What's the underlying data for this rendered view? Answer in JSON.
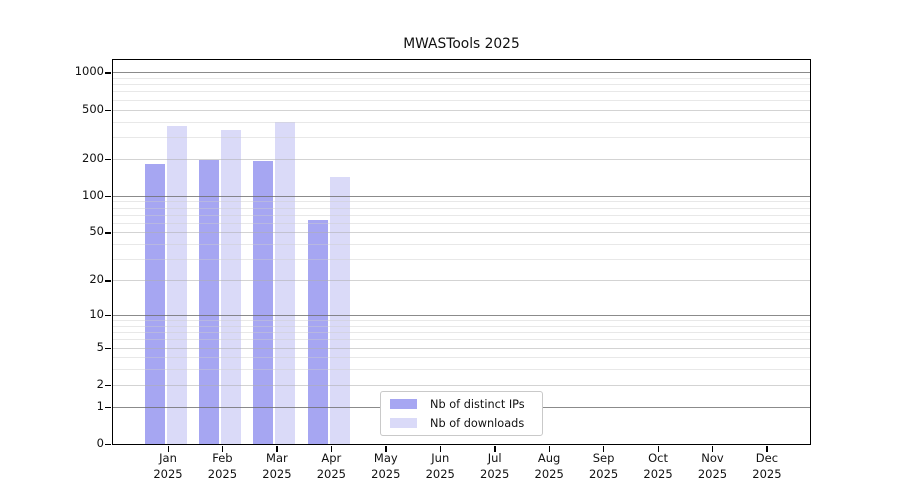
{
  "chart_data": {
    "type": "bar",
    "title": "MWASTools 2025",
    "year_label": "2025",
    "categories": [
      "Jan",
      "Feb",
      "Mar",
      "Apr",
      "May",
      "Jun",
      "Jul",
      "Aug",
      "Sep",
      "Oct",
      "Nov",
      "Dec"
    ],
    "series": [
      {
        "name": "Nb of distinct IPs",
        "color": "#a6a6f2",
        "values": [
          180,
          195,
          192,
          63,
          0,
          0,
          0,
          0,
          0,
          0,
          0,
          0
        ]
      },
      {
        "name": "Nb of downloads",
        "color": "#dadaf8",
        "values": [
          370,
          340,
          400,
          141,
          0,
          0,
          0,
          0,
          0,
          0,
          0,
          0
        ]
      }
    ],
    "yticks": [
      0,
      1,
      2,
      5,
      10,
      20,
      50,
      100,
      200,
      500,
      1000
    ],
    "yscale": "log1p",
    "ylim": [
      0,
      1260
    ],
    "grid": "horizontal, minor and major, drawn over bars",
    "legend_position": "bottom-center inside plot",
    "axis_color": "#000000",
    "background_color": "#ffffff"
  }
}
